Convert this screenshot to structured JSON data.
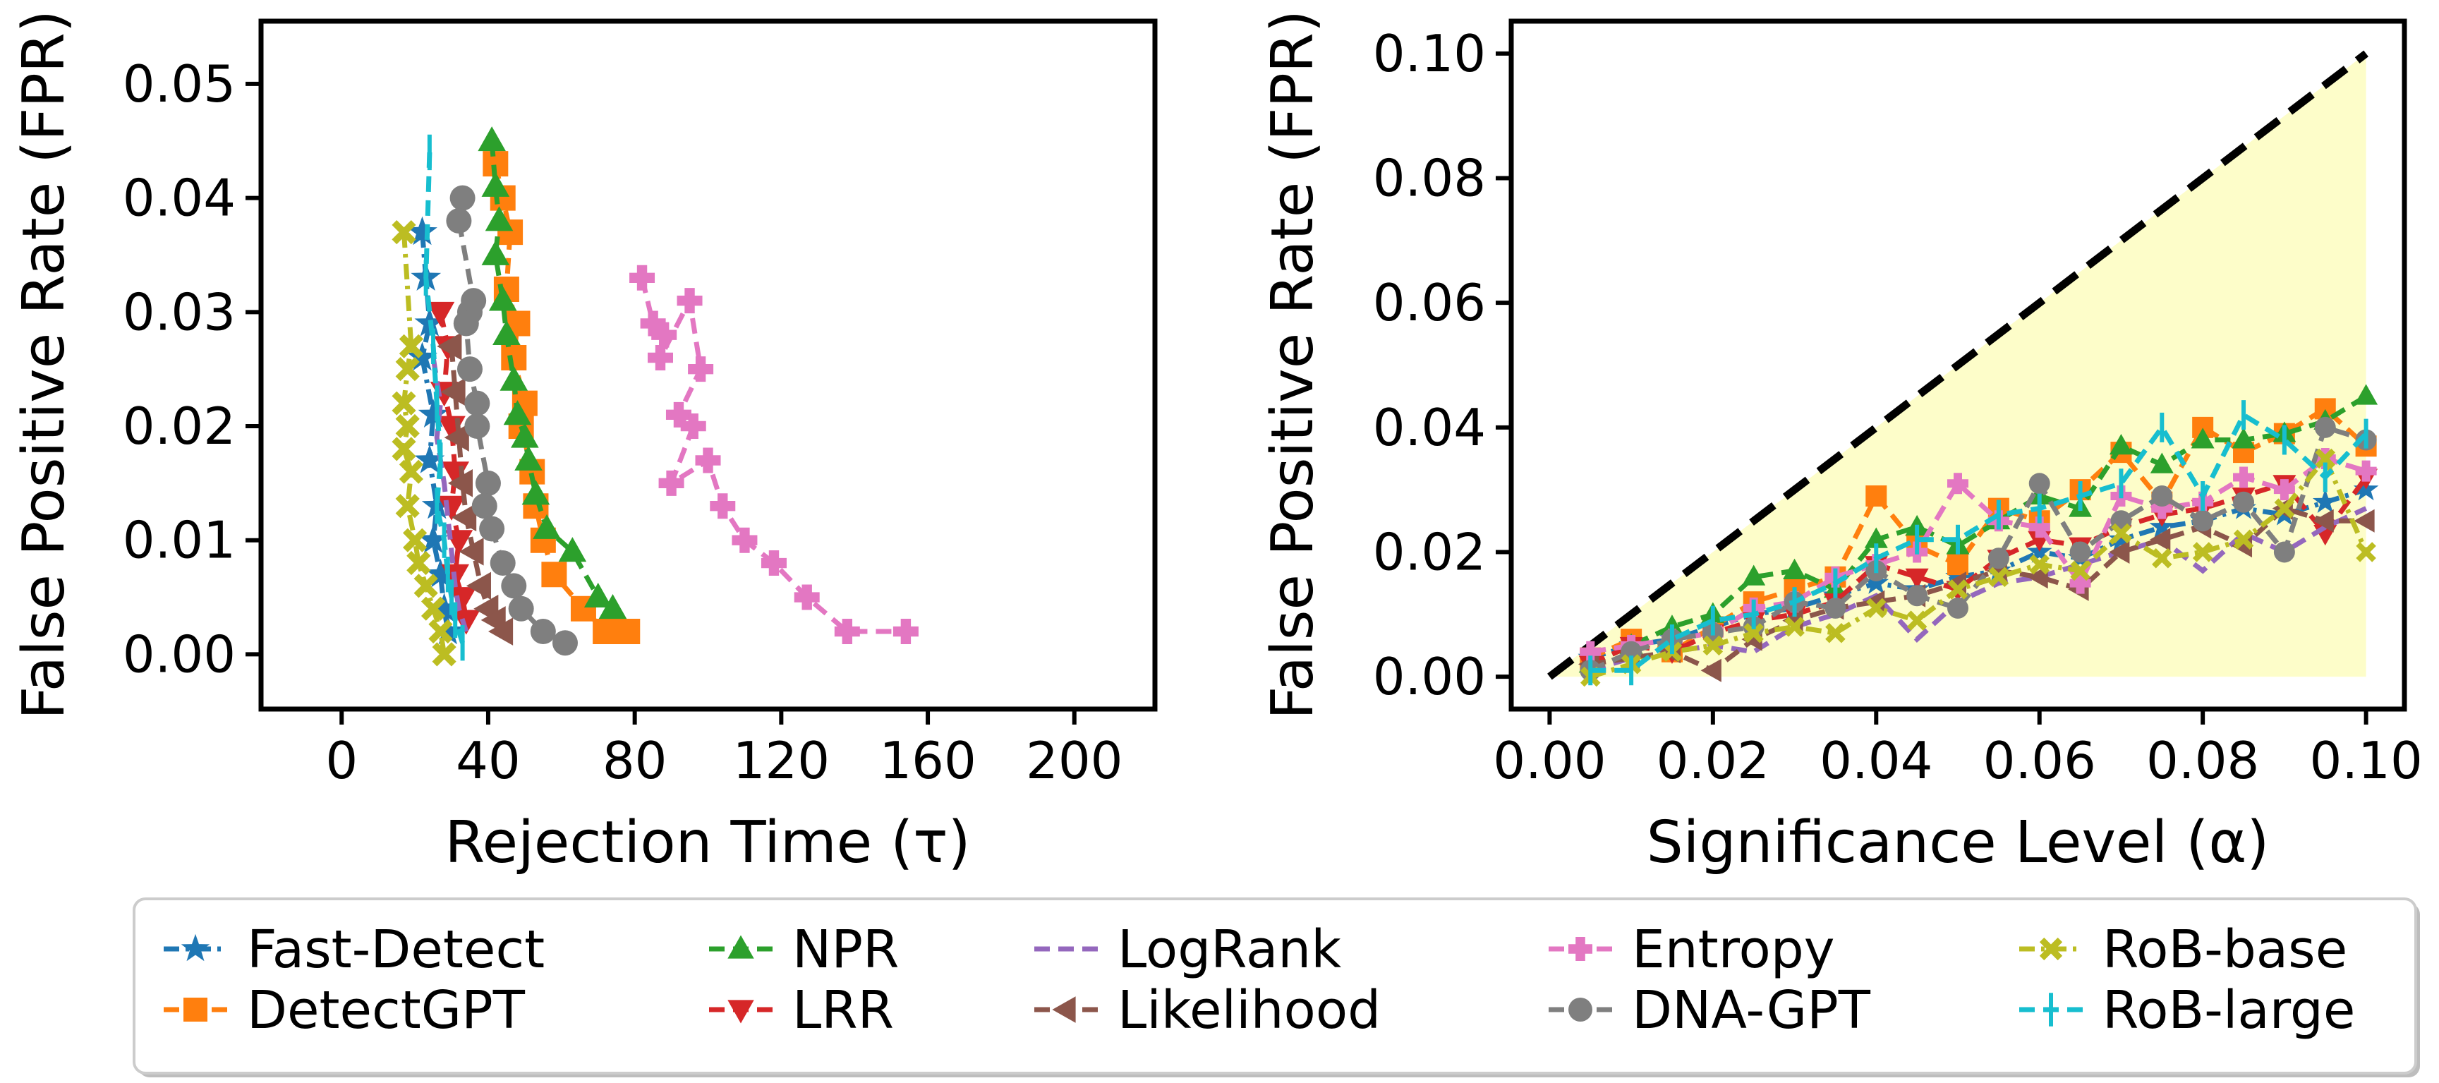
{
  "chart_data": [
    {
      "type": "line",
      "xlabel": "Rejection Time (τ)",
      "ylabel": "False Positive Rate (FPR)",
      "xlim": [
        -22,
        222
      ],
      "ylim": [
        -0.0048,
        0.0555
      ],
      "xticks": [
        0,
        40,
        80,
        120,
        160,
        200
      ],
      "xtick_labels": [
        "0",
        "40",
        "80",
        "120",
        "160",
        "200"
      ],
      "yticks": [
        0.0,
        0.01,
        0.02,
        0.03,
        0.04,
        0.05
      ],
      "ytick_labels": [
        "0.00",
        "0.01",
        "0.02",
        "0.03",
        "0.04",
        "0.05"
      ],
      "series": [
        {
          "name": "Fast-Detect",
          "x": [
            22,
            23,
            24,
            22,
            25,
            24,
            26,
            25,
            27,
            28,
            29
          ],
          "y": [
            0.037,
            0.033,
            0.029,
            0.026,
            0.021,
            0.017,
            0.013,
            0.01,
            0.007,
            0.004,
            0.002
          ]
        },
        {
          "name": "DetectGPT",
          "x": [
            42,
            44,
            46,
            45,
            48,
            47,
            50,
            49,
            52,
            53,
            55,
            58,
            66,
            72,
            78
          ],
          "y": [
            0.043,
            0.04,
            0.037,
            0.032,
            0.029,
            0.026,
            0.022,
            0.02,
            0.016,
            0.013,
            0.01,
            0.007,
            0.004,
            0.002,
            0.002
          ]
        },
        {
          "name": "NPR",
          "x": [
            41,
            42,
            43,
            42,
            44,
            45,
            47,
            48,
            50,
            51,
            53,
            56,
            63,
            70,
            74
          ],
          "y": [
            0.045,
            0.041,
            0.038,
            0.035,
            0.031,
            0.028,
            0.024,
            0.021,
            0.019,
            0.017,
            0.014,
            0.011,
            0.009,
            0.005,
            0.004
          ]
        },
        {
          "name": "LRR",
          "x": [
            27,
            29,
            28,
            30,
            31,
            30,
            32,
            31,
            33,
            34
          ],
          "y": [
            0.03,
            0.027,
            0.023,
            0.02,
            0.016,
            0.013,
            0.01,
            0.007,
            0.005,
            0.003
          ]
        },
        {
          "name": "LogRank",
          "x": [
            25,
            27,
            26,
            28,
            29,
            30,
            31,
            32,
            34
          ],
          "y": [
            0.026,
            0.022,
            0.019,
            0.015,
            0.012,
            0.009,
            0.006,
            0.004,
            0.002
          ]
        },
        {
          "name": "Likelihood",
          "x": [
            30,
            31,
            32,
            33,
            34,
            36,
            38,
            40,
            42,
            44
          ],
          "y": [
            0.027,
            0.023,
            0.019,
            0.015,
            0.012,
            0.009,
            0.006,
            0.004,
            0.003,
            0.002
          ]
        },
        {
          "name": "Entropy",
          "x": [
            82,
            85,
            88,
            87,
            95,
            98,
            92,
            96,
            90,
            100,
            104,
            110,
            118,
            127,
            138,
            154
          ],
          "y": [
            0.033,
            0.029,
            0.028,
            0.026,
            0.031,
            0.025,
            0.021,
            0.02,
            0.015,
            0.017,
            0.013,
            0.01,
            0.008,
            0.005,
            0.002,
            0.002
          ]
        },
        {
          "name": "DNA-GPT",
          "x": [
            33,
            32,
            36,
            35,
            34,
            35,
            37,
            37,
            40,
            39,
            41,
            44,
            47,
            49,
            55,
            61
          ],
          "y": [
            0.04,
            0.038,
            0.031,
            0.03,
            0.029,
            0.025,
            0.022,
            0.02,
            0.015,
            0.013,
            0.011,
            0.008,
            0.006,
            0.004,
            0.002,
            0.001
          ]
        },
        {
          "name": "RoB-base",
          "x": [
            17,
            19,
            18,
            17,
            18,
            17,
            19,
            18,
            20,
            21,
            23,
            25,
            27,
            28
          ],
          "y": [
            0.037,
            0.027,
            0.025,
            0.022,
            0.02,
            0.018,
            0.016,
            0.013,
            0.01,
            0.008,
            0.006,
            0.004,
            0.002,
            0.0
          ]
        },
        {
          "name": "RoB-large",
          "x": [
            24,
            23,
            25,
            26,
            27,
            26,
            28,
            29,
            30,
            31,
            33
          ],
          "y": [
            0.044,
            0.033,
            0.027,
            0.022,
            0.017,
            0.013,
            0.01,
            0.007,
            0.005,
            0.003,
            0.001
          ]
        }
      ]
    },
    {
      "type": "line",
      "xlabel": "Significance Level (α)",
      "ylabel": "False Positive Rate (FPR)",
      "xlim": [
        -0.0047,
        0.1047
      ],
      "ylim": [
        -0.0052,
        0.1052
      ],
      "xticks": [
        0.0,
        0.02,
        0.04,
        0.06,
        0.08,
        0.1
      ],
      "xtick_labels": [
        "0.00",
        "0.02",
        "0.04",
        "0.06",
        "0.08",
        "0.10"
      ],
      "yticks": [
        0.0,
        0.02,
        0.04,
        0.06,
        0.08,
        0.1
      ],
      "ytick_labels": [
        "0.00",
        "0.02",
        "0.04",
        "0.06",
        "0.08",
        "0.10"
      ],
      "reference_line": {
        "style": "dashed",
        "color": "#000000",
        "x": [
          0.0,
          0.1
        ],
        "y": [
          0.0,
          0.1
        ]
      },
      "shaded_region": {
        "color": "#fdfdc9",
        "x": [
          0.0,
          0.1
        ],
        "y_lower": [
          0.0,
          0.0
        ],
        "y_upper": [
          0.0,
          0.1
        ]
      },
      "alpha": [
        0.005,
        0.01,
        0.015,
        0.02,
        0.025,
        0.03,
        0.035,
        0.04,
        0.045,
        0.05,
        0.055,
        0.06,
        0.065,
        0.07,
        0.075,
        0.08,
        0.085,
        0.09,
        0.095,
        0.1
      ],
      "series": [
        {
          "name": "Fast-Detect",
          "y": [
            0.003,
            0.005,
            0.006,
            0.008,
            0.01,
            0.011,
            0.013,
            0.015,
            0.014,
            0.016,
            0.017,
            0.02,
            0.019,
            0.022,
            0.024,
            0.025,
            0.027,
            0.026,
            0.028,
            0.03
          ]
        },
        {
          "name": "DetectGPT",
          "y": [
            0.003,
            0.006,
            0.004,
            0.008,
            0.012,
            0.014,
            0.016,
            0.029,
            0.021,
            0.018,
            0.027,
            0.025,
            0.03,
            0.036,
            0.028,
            0.04,
            0.036,
            0.039,
            0.043,
            0.037
          ]
        },
        {
          "name": "NPR",
          "y": [
            0.002,
            0.005,
            0.008,
            0.01,
            0.016,
            0.017,
            0.014,
            0.022,
            0.024,
            0.021,
            0.025,
            0.029,
            0.027,
            0.037,
            0.034,
            0.038,
            0.038,
            0.039,
            0.041,
            0.045
          ]
        },
        {
          "name": "LRR",
          "y": [
            0.002,
            0.005,
            0.004,
            0.007,
            0.009,
            0.01,
            0.012,
            0.018,
            0.016,
            0.014,
            0.019,
            0.022,
            0.021,
            0.024,
            0.026,
            0.027,
            0.029,
            0.031,
            0.023,
            0.032
          ]
        },
        {
          "name": "LogRank",
          "y": [
            0.001,
            0.003,
            0.004,
            0.005,
            0.004,
            0.008,
            0.01,
            0.013,
            0.006,
            0.012,
            0.015,
            0.016,
            0.018,
            0.02,
            0.022,
            0.017,
            0.023,
            0.02,
            0.024,
            0.027
          ]
        },
        {
          "name": "Likelihood",
          "y": [
            0.002,
            0.003,
            0.004,
            0.001,
            0.006,
            0.009,
            0.011,
            0.012,
            0.013,
            0.015,
            0.017,
            0.016,
            0.014,
            0.02,
            0.022,
            0.024,
            0.021,
            0.027,
            0.025,
            0.025
          ]
        },
        {
          "name": "Entropy",
          "y": [
            0.004,
            0.005,
            0.006,
            0.007,
            0.011,
            0.012,
            0.016,
            0.018,
            0.02,
            0.031,
            0.025,
            0.024,
            0.015,
            0.029,
            0.027,
            0.028,
            0.032,
            0.03,
            0.035,
            0.033
          ]
        },
        {
          "name": "DNA-GPT",
          "y": [
            0.001,
            0.004,
            0.006,
            0.007,
            0.008,
            0.012,
            0.011,
            0.017,
            0.013,
            0.011,
            0.019,
            0.031,
            0.02,
            0.025,
            0.029,
            0.025,
            0.028,
            0.02,
            0.04,
            0.038
          ]
        },
        {
          "name": "RoB-base",
          "y": [
            0.0,
            0.002,
            0.004,
            0.005,
            0.007,
            0.008,
            0.007,
            0.011,
            0.009,
            0.014,
            0.016,
            0.018,
            0.017,
            0.023,
            0.019,
            0.02,
            0.022,
            0.027,
            0.035,
            0.02
          ]
        },
        {
          "name": "RoB-large",
          "y": [
            0.001,
            0.001,
            0.006,
            0.009,
            0.01,
            0.012,
            0.015,
            0.019,
            0.022,
            0.022,
            0.026,
            0.027,
            0.029,
            0.031,
            0.04,
            0.029,
            0.042,
            0.038,
            0.032,
            0.039
          ]
        }
      ]
    }
  ],
  "legend": {
    "placement": "bottom-center",
    "columns": 5,
    "entries": [
      {
        "name": "Fast-Detect",
        "color": "#1f77b4",
        "marker": "star",
        "style": "dashdot"
      },
      {
        "name": "DetectGPT",
        "color": "#ff7f0e",
        "marker": "square",
        "style": "dashed"
      },
      {
        "name": "NPR",
        "color": "#2ca02c",
        "marker": "triangle-up",
        "style": "dashed"
      },
      {
        "name": "LRR",
        "color": "#d62728",
        "marker": "triangle-down",
        "style": "dashed"
      },
      {
        "name": "LogRank",
        "color": "#9467bd",
        "marker": "none",
        "style": "dashed"
      },
      {
        "name": "Likelihood",
        "color": "#8c564b",
        "marker": "triangle-left",
        "style": "dashed"
      },
      {
        "name": "Entropy",
        "color": "#e377c2",
        "marker": "plus-filled",
        "style": "dashed"
      },
      {
        "name": "DNA-GPT",
        "color": "#7f7f7f",
        "marker": "circle",
        "style": "dashed"
      },
      {
        "name": "RoB-base",
        "color": "#bcbd22",
        "marker": "x-filled",
        "style": "dashdot"
      },
      {
        "name": "RoB-large",
        "color": "#17becf",
        "marker": "vline",
        "style": "dashed"
      }
    ]
  }
}
